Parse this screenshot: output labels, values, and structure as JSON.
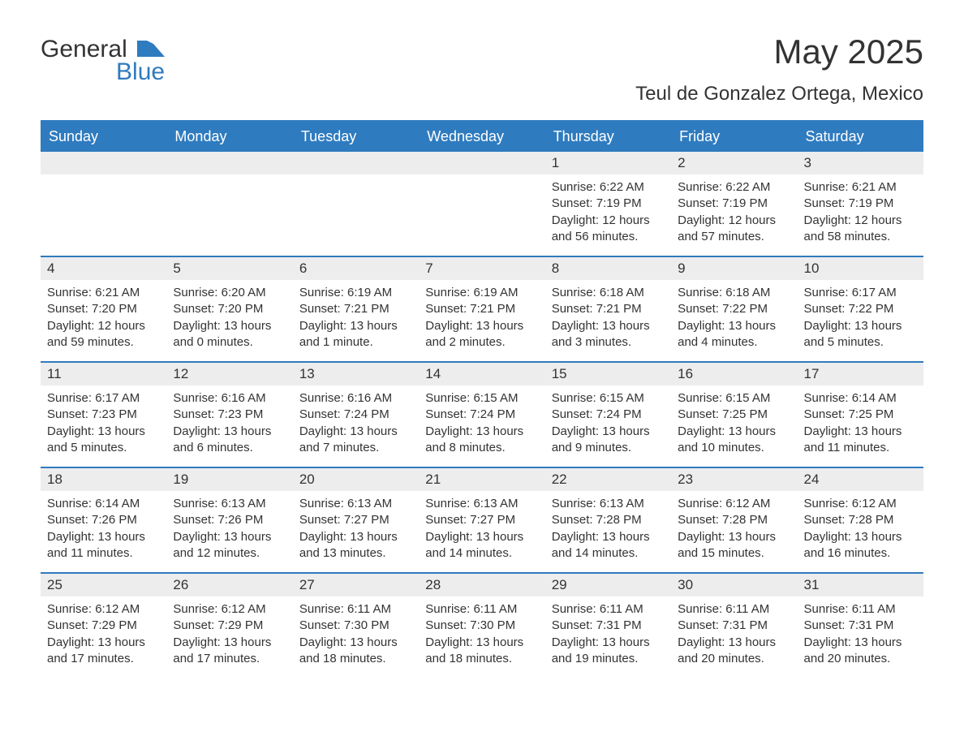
{
  "brand": {
    "word1": "General",
    "word2": "Blue"
  },
  "title": "May 2025",
  "location": "Teul de Gonzalez Ortega, Mexico",
  "colors": {
    "accent": "#2f7bbf",
    "header_text": "#ffffff",
    "daynum_bg": "#ededed",
    "text": "#333333",
    "background": "#ffffff"
  },
  "labels": {
    "sunrise_prefix": "Sunrise: ",
    "sunset_prefix": "Sunset: ",
    "daylight_prefix": "Daylight: "
  },
  "weekdays": [
    "Sunday",
    "Monday",
    "Tuesday",
    "Wednesday",
    "Thursday",
    "Friday",
    "Saturday"
  ],
  "weeks": [
    [
      null,
      null,
      null,
      null,
      {
        "n": 1,
        "sunrise": "6:22 AM",
        "sunset": "7:19 PM",
        "daylight": "12 hours and 56 minutes."
      },
      {
        "n": 2,
        "sunrise": "6:22 AM",
        "sunset": "7:19 PM",
        "daylight": "12 hours and 57 minutes."
      },
      {
        "n": 3,
        "sunrise": "6:21 AM",
        "sunset": "7:19 PM",
        "daylight": "12 hours and 58 minutes."
      }
    ],
    [
      {
        "n": 4,
        "sunrise": "6:21 AM",
        "sunset": "7:20 PM",
        "daylight": "12 hours and 59 minutes."
      },
      {
        "n": 5,
        "sunrise": "6:20 AM",
        "sunset": "7:20 PM",
        "daylight": "13 hours and 0 minutes."
      },
      {
        "n": 6,
        "sunrise": "6:19 AM",
        "sunset": "7:21 PM",
        "daylight": "13 hours and 1 minute."
      },
      {
        "n": 7,
        "sunrise": "6:19 AM",
        "sunset": "7:21 PM",
        "daylight": "13 hours and 2 minutes."
      },
      {
        "n": 8,
        "sunrise": "6:18 AM",
        "sunset": "7:21 PM",
        "daylight": "13 hours and 3 minutes."
      },
      {
        "n": 9,
        "sunrise": "6:18 AM",
        "sunset": "7:22 PM",
        "daylight": "13 hours and 4 minutes."
      },
      {
        "n": 10,
        "sunrise": "6:17 AM",
        "sunset": "7:22 PM",
        "daylight": "13 hours and 5 minutes."
      }
    ],
    [
      {
        "n": 11,
        "sunrise": "6:17 AM",
        "sunset": "7:23 PM",
        "daylight": "13 hours and 5 minutes."
      },
      {
        "n": 12,
        "sunrise": "6:16 AM",
        "sunset": "7:23 PM",
        "daylight": "13 hours and 6 minutes."
      },
      {
        "n": 13,
        "sunrise": "6:16 AM",
        "sunset": "7:24 PM",
        "daylight": "13 hours and 7 minutes."
      },
      {
        "n": 14,
        "sunrise": "6:15 AM",
        "sunset": "7:24 PM",
        "daylight": "13 hours and 8 minutes."
      },
      {
        "n": 15,
        "sunrise": "6:15 AM",
        "sunset": "7:24 PM",
        "daylight": "13 hours and 9 minutes."
      },
      {
        "n": 16,
        "sunrise": "6:15 AM",
        "sunset": "7:25 PM",
        "daylight": "13 hours and 10 minutes."
      },
      {
        "n": 17,
        "sunrise": "6:14 AM",
        "sunset": "7:25 PM",
        "daylight": "13 hours and 11 minutes."
      }
    ],
    [
      {
        "n": 18,
        "sunrise": "6:14 AM",
        "sunset": "7:26 PM",
        "daylight": "13 hours and 11 minutes."
      },
      {
        "n": 19,
        "sunrise": "6:13 AM",
        "sunset": "7:26 PM",
        "daylight": "13 hours and 12 minutes."
      },
      {
        "n": 20,
        "sunrise": "6:13 AM",
        "sunset": "7:27 PM",
        "daylight": "13 hours and 13 minutes."
      },
      {
        "n": 21,
        "sunrise": "6:13 AM",
        "sunset": "7:27 PM",
        "daylight": "13 hours and 14 minutes."
      },
      {
        "n": 22,
        "sunrise": "6:13 AM",
        "sunset": "7:28 PM",
        "daylight": "13 hours and 14 minutes."
      },
      {
        "n": 23,
        "sunrise": "6:12 AM",
        "sunset": "7:28 PM",
        "daylight": "13 hours and 15 minutes."
      },
      {
        "n": 24,
        "sunrise": "6:12 AM",
        "sunset": "7:28 PM",
        "daylight": "13 hours and 16 minutes."
      }
    ],
    [
      {
        "n": 25,
        "sunrise": "6:12 AM",
        "sunset": "7:29 PM",
        "daylight": "13 hours and 17 minutes."
      },
      {
        "n": 26,
        "sunrise": "6:12 AM",
        "sunset": "7:29 PM",
        "daylight": "13 hours and 17 minutes."
      },
      {
        "n": 27,
        "sunrise": "6:11 AM",
        "sunset": "7:30 PM",
        "daylight": "13 hours and 18 minutes."
      },
      {
        "n": 28,
        "sunrise": "6:11 AM",
        "sunset": "7:30 PM",
        "daylight": "13 hours and 18 minutes."
      },
      {
        "n": 29,
        "sunrise": "6:11 AM",
        "sunset": "7:31 PM",
        "daylight": "13 hours and 19 minutes."
      },
      {
        "n": 30,
        "sunrise": "6:11 AM",
        "sunset": "7:31 PM",
        "daylight": "13 hours and 20 minutes."
      },
      {
        "n": 31,
        "sunrise": "6:11 AM",
        "sunset": "7:31 PM",
        "daylight": "13 hours and 20 minutes."
      }
    ]
  ]
}
